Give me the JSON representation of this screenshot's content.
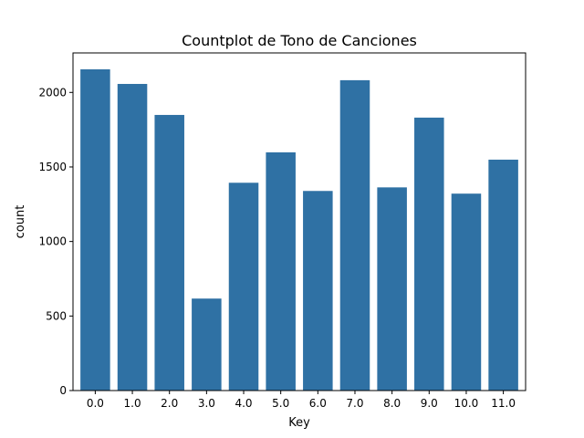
{
  "chart_data": {
    "type": "bar",
    "title": "Countplot de Tono de Canciones",
    "xlabel": "Key",
    "ylabel": "count",
    "categories": [
      "0.0",
      "1.0",
      "2.0",
      "3.0",
      "4.0",
      "5.0",
      "6.0",
      "7.0",
      "8.0",
      "9.0",
      "10.0",
      "11.0"
    ],
    "values": [
      2155,
      2057,
      1849,
      617,
      1394,
      1598,
      1339,
      2082,
      1363,
      1831,
      1321,
      1549
    ],
    "ylim": [
      0,
      2265
    ],
    "yticks": [
      0,
      500,
      1000,
      1500,
      2000
    ],
    "grid": false,
    "legend": "none",
    "bar_color": "#2f71a4"
  }
}
